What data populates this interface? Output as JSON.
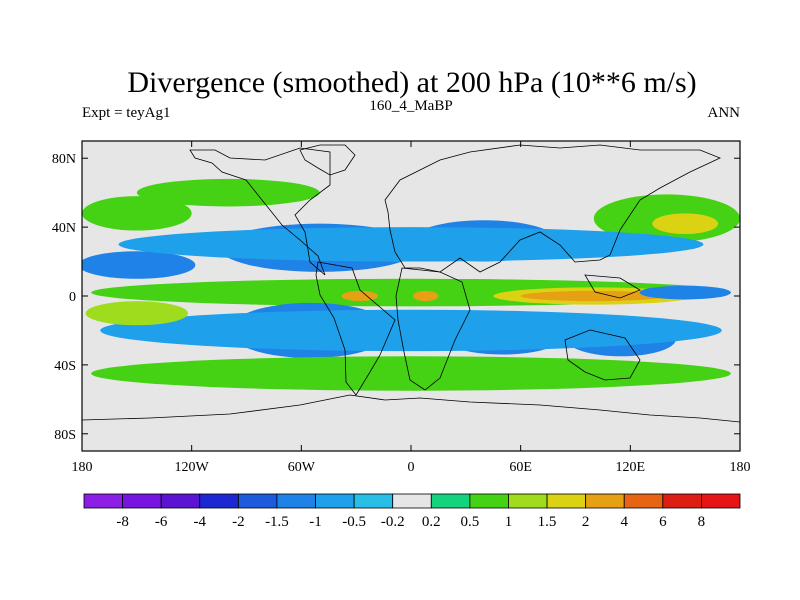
{
  "chart_data": {
    "type": "heatmap",
    "title": "Divergence (smoothed) at 200 hPa (10**6 m/s)",
    "subtitle_left": "Expt = teyAg1",
    "subtitle_center": "160_4_MaBP",
    "subtitle_right": "ANN",
    "x_ticks": [
      {
        "value": -180,
        "label": "180"
      },
      {
        "value": -120,
        "label": "120W"
      },
      {
        "value": -60,
        "label": "60W"
      },
      {
        "value": 0,
        "label": "0"
      },
      {
        "value": 60,
        "label": "60E"
      },
      {
        "value": 120,
        "label": "120E"
      },
      {
        "value": 180,
        "label": "180"
      }
    ],
    "y_ticks": [
      {
        "value": 80,
        "label": "80N"
      },
      {
        "value": 40,
        "label": "40N"
      },
      {
        "value": 0,
        "label": "0"
      },
      {
        "value": -40,
        "label": "40S"
      },
      {
        "value": -80,
        "label": "80S"
      }
    ],
    "xlim": [
      -180,
      180
    ],
    "ylim": [
      -90,
      90
    ],
    "colorbar": {
      "levels": [
        "-8",
        "-6",
        "-4",
        "-2",
        "-1.5",
        "-1",
        "-0.5",
        "-0.2",
        "0.2",
        "0.5",
        "1",
        "1.5",
        "2",
        "4",
        "6",
        "8"
      ],
      "colors": [
        "#8c1ee6",
        "#7814e0",
        "#5a14d2",
        "#1e28d2",
        "#1e5adc",
        "#1e82e6",
        "#1ea0eb",
        "#28bee6",
        "#e6e6e6",
        "#14d27d",
        "#46d214",
        "#a0dc1e",
        "#dcd214",
        "#e6a014",
        "#e66414",
        "#dc1e14",
        "#e61414"
      ]
    },
    "regions": [
      {
        "id": "nh-high-green",
        "level": 0.5,
        "cx": -100,
        "cy": 60,
        "rx": 50,
        "ry": 8
      },
      {
        "id": "nh-jet-green-east",
        "level": 0.5,
        "cx": 140,
        "cy": 45,
        "rx": 40,
        "ry": 14
      },
      {
        "id": "nh-jet-yellow-east",
        "level": 1.5,
        "cx": 150,
        "cy": 42,
        "rx": 18,
        "ry": 6
      },
      {
        "id": "nh-green-band-west",
        "level": 0.5,
        "cx": -150,
        "cy": 48,
        "rx": 30,
        "ry": 10
      },
      {
        "id": "nh-blue-pacific",
        "level": -1,
        "cx": -150,
        "cy": 18,
        "rx": 32,
        "ry": 8
      },
      {
        "id": "nh-blue-atlantic",
        "level": -1,
        "cx": -50,
        "cy": 28,
        "rx": 55,
        "ry": 14
      },
      {
        "id": "nh-blue-asia",
        "level": -1,
        "cx": 40,
        "cy": 32,
        "rx": 40,
        "ry": 12
      },
      {
        "id": "nh-dark-blue-asia",
        "level": -1.5,
        "cx": 50,
        "cy": 30,
        "rx": 16,
        "ry": 6
      },
      {
        "id": "nh-cyan-band",
        "level": -0.5,
        "cx": 0,
        "cy": 30,
        "rx": 160,
        "ry": 10
      },
      {
        "id": "eq-green-belt",
        "level": 0.5,
        "cx": 0,
        "cy": 2,
        "rx": 175,
        "ry": 8
      },
      {
        "id": "eq-yellow-indian",
        "level": 1.5,
        "cx": 100,
        "cy": 0,
        "rx": 55,
        "ry": 5
      },
      {
        "id": "eq-orange-indian",
        "level": 2,
        "cx": 100,
        "cy": 0,
        "rx": 40,
        "ry": 3
      },
      {
        "id": "eq-orange-atlantic",
        "level": 2,
        "cx": -28,
        "cy": 0,
        "rx": 10,
        "ry": 3
      },
      {
        "id": "eq-orange-africa",
        "level": 2,
        "cx": 8,
        "cy": 0,
        "rx": 7,
        "ry": 3
      },
      {
        "id": "eq-blue-east-pacific",
        "level": -1,
        "cx": 150,
        "cy": 2,
        "rx": 25,
        "ry": 4
      },
      {
        "id": "sh-blue-south-america",
        "level": -1,
        "cx": -55,
        "cy": -20,
        "rx": 45,
        "ry": 16
      },
      {
        "id": "sh-dark-blue-south-america",
        "level": -2,
        "cx": -42,
        "cy": -24,
        "rx": 10,
        "ry": 6
      },
      {
        "id": "sh-blue-south-africa",
        "level": -1,
        "cx": 50,
        "cy": -22,
        "rx": 35,
        "ry": 12
      },
      {
        "id": "sh-blue-indian",
        "level": -1,
        "cx": 115,
        "cy": -25,
        "rx": 30,
        "ry": 10
      },
      {
        "id": "sh-cyan-band",
        "level": -0.5,
        "cx": 0,
        "cy": -20,
        "rx": 170,
        "ry": 12
      },
      {
        "id": "sh-green-band",
        "level": 0.5,
        "cx": 0,
        "cy": -45,
        "rx": 175,
        "ry": 10
      },
      {
        "id": "sh-green-west",
        "level": 1,
        "cx": -150,
        "cy": -10,
        "rx": 28,
        "ry": 7
      }
    ]
  }
}
